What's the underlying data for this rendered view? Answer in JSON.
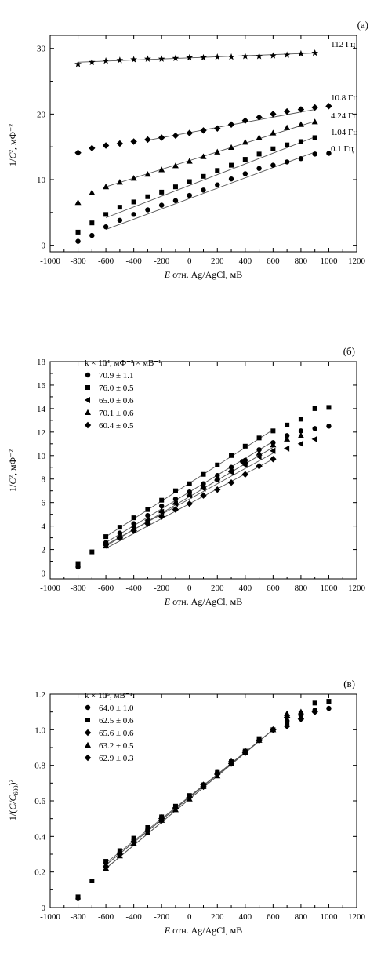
{
  "chart_data": [
    {
      "type": "scatter",
      "panel_label": "(а)",
      "xlabel_italic": "E",
      "xlabel_rest": " отн. Ag/AgCl, мВ",
      "ylabel_pre": "1/",
      "ylabel_italic": "C",
      "ylabel_post": "², мФ⁻²",
      "xlim": [
        -1000,
        1200
      ],
      "ylim": [
        -1,
        32
      ],
      "xticks": [
        -1000,
        -800,
        -600,
        -400,
        -200,
        0,
        200,
        400,
        600,
        800,
        1000,
        1200
      ],
      "yticks": [
        0,
        10,
        20,
        30
      ],
      "legend_title": "",
      "series": [
        {
          "name": "112 Гц",
          "marker": "star",
          "x": [
            -800,
            -700,
            -600,
            -500,
            -400,
            -300,
            -200,
            -100,
            0,
            100,
            200,
            300,
            400,
            500,
            600,
            700,
            800,
            900
          ],
          "y": [
            27.6,
            27.9,
            28.1,
            28.2,
            28.3,
            28.4,
            28.4,
            28.5,
            28.6,
            28.6,
            28.7,
            28.7,
            28.8,
            28.8,
            28.9,
            29.0,
            29.2,
            29.3
          ],
          "fit": [
            -800,
            27.9,
            900,
            29.3
          ]
        },
        {
          "name": "10.8 Гц",
          "marker": "diamond",
          "x": [
            -800,
            -700,
            -600,
            -500,
            -400,
            -300,
            -200,
            -100,
            0,
            100,
            200,
            300,
            400,
            500,
            600,
            700,
            800,
            900,
            1000
          ],
          "y": [
            14.1,
            14.8,
            15.2,
            15.5,
            15.8,
            16.1,
            16.4,
            16.7,
            17.1,
            17.5,
            17.8,
            18.4,
            19.0,
            19.5,
            20.0,
            20.4,
            20.7,
            21.0,
            21.2
          ],
          "fit": [
            -300,
            16.0,
            900,
            20.7
          ]
        },
        {
          "name": "4.24 Гц",
          "marker": "triangle",
          "x": [
            -800,
            -700,
            -600,
            -500,
            -400,
            -300,
            -200,
            -100,
            0,
            100,
            200,
            300,
            400,
            500,
            600,
            700,
            800,
            900
          ],
          "y": [
            6.5,
            8.0,
            8.9,
            9.6,
            10.2,
            10.8,
            11.5,
            12.1,
            12.8,
            13.5,
            14.2,
            14.9,
            15.7,
            16.4,
            17.1,
            17.9,
            18.4,
            18.8
          ],
          "fit": [
            -600,
            8.9,
            900,
            18.9
          ]
        },
        {
          "name": "1.04 Гц",
          "marker": "square",
          "x": [
            -800,
            -700,
            -600,
            -500,
            -400,
            -300,
            -200,
            -100,
            0,
            100,
            200,
            300,
            400,
            500,
            600,
            700,
            800,
            900
          ],
          "y": [
            2.0,
            3.4,
            4.7,
            5.8,
            6.6,
            7.4,
            8.1,
            8.9,
            9.7,
            10.5,
            11.4,
            12.2,
            13.1,
            13.9,
            14.7,
            15.3,
            15.8,
            16.4
          ],
          "fit": [
            -600,
            4.2,
            900,
            16.5
          ]
        },
        {
          "name": "0.1 Гц",
          "marker": "circle",
          "x": [
            -800,
            -700,
            -600,
            -500,
            -400,
            -300,
            -200,
            -100,
            0,
            100,
            200,
            300,
            400,
            500,
            600,
            700,
            800,
            900,
            1000
          ],
          "y": [
            0.6,
            1.5,
            2.8,
            3.8,
            4.7,
            5.4,
            6.1,
            6.8,
            7.6,
            8.4,
            9.2,
            10.1,
            10.9,
            11.7,
            12.2,
            12.7,
            13.2,
            13.9,
            14.0
          ],
          "fit": [
            -600,
            2.4,
            900,
            14.2
          ]
        }
      ]
    },
    {
      "type": "scatter",
      "panel_label": "(б)",
      "xlabel_italic": "E",
      "xlabel_rest": " отн. Ag/AgCl, мВ",
      "ylabel_pre": "1/",
      "ylabel_italic": "C",
      "ylabel_post": "², мФ⁻²",
      "xlim": [
        -1000,
        1200
      ],
      "ylim": [
        -0.5,
        18
      ],
      "xticks": [
        -1000,
        -800,
        -600,
        -400,
        -200,
        0,
        200,
        400,
        600,
        800,
        1000,
        1200
      ],
      "yticks": [
        0,
        2,
        4,
        6,
        8,
        10,
        12,
        14,
        16,
        18
      ],
      "legend_title": "k × 10⁴, мФ⁻² × мВ⁻¹",
      "series": [
        {
          "name": "70.9 ± 1.1",
          "marker": "circle",
          "x": [
            -800,
            -600,
            -500,
            -400,
            -300,
            -200,
            -100,
            0,
            100,
            200,
            300,
            380,
            400,
            500,
            600,
            700,
            800,
            900,
            1000
          ],
          "y": [
            0.5,
            2.6,
            3.4,
            4.2,
            4.9,
            5.7,
            6.3,
            6.9,
            7.6,
            8.3,
            9.0,
            9.5,
            9.6,
            10.5,
            11.1,
            11.7,
            12.1,
            12.3,
            12.5
          ],
          "fit": [
            -600,
            2.6,
            600,
            11.2
          ]
        },
        {
          "name": "76.0 ± 0.5",
          "marker": "square",
          "x": [
            -800,
            -700,
            -600,
            -500,
            -400,
            -300,
            -200,
            -100,
            0,
            100,
            200,
            300,
            400,
            500,
            600,
            700,
            800,
            900,
            1000
          ],
          "y": [
            0.8,
            1.8,
            3.1,
            3.9,
            4.7,
            5.4,
            6.2,
            7.0,
            7.6,
            8.4,
            9.2,
            10.0,
            10.8,
            11.5,
            12.1,
            12.6,
            13.1,
            14.0,
            14.1
          ],
          "fit": [
            -600,
            3.1,
            600,
            12.2
          ]
        },
        {
          "name": "65.0 ± 0.6",
          "marker": "triangle-left",
          "x": [
            -600,
            -500,
            -400,
            -300,
            -200,
            -100,
            0,
            100,
            200,
            300,
            400,
            500,
            600,
            700,
            800,
            900
          ],
          "y": [
            2.5,
            3.1,
            3.9,
            4.5,
            5.2,
            5.9,
            6.6,
            7.2,
            7.9,
            8.6,
            9.2,
            9.9,
            10.4,
            10.6,
            11.0,
            11.4
          ],
          "fit": [
            -600,
            2.4,
            600,
            10.2
          ]
        },
        {
          "name": "70.1 ± 0.6",
          "marker": "triangle",
          "x": [
            -600,
            -500,
            -400,
            -300,
            -200,
            -100,
            0,
            100,
            200,
            300,
            400,
            500,
            600,
            700,
            800
          ],
          "y": [
            2.3,
            3.1,
            3.8,
            4.5,
            5.3,
            6.0,
            6.7,
            7.4,
            8.1,
            8.8,
            9.5,
            10.2,
            10.9,
            11.4,
            11.7
          ],
          "fit": [
            -600,
            2.3,
            600,
            10.7
          ]
        },
        {
          "name": "60.4 ± 0.5",
          "marker": "diamond",
          "x": [
            -600,
            -500,
            -400,
            -300,
            -200,
            -100,
            0,
            100,
            200,
            300,
            400,
            500,
            600
          ],
          "y": [
            2.4,
            3.0,
            3.6,
            4.2,
            4.8,
            5.4,
            5.9,
            6.6,
            7.1,
            7.7,
            8.4,
            9.1,
            9.7
          ],
          "fit": [
            -600,
            2.1,
            600,
            9.7
          ]
        }
      ]
    },
    {
      "type": "scatter",
      "panel_label": "(в)",
      "xlabel_italic": "E",
      "xlabel_rest": " отн. Ag/AgCl, мВ",
      "ylabel_pre": "1/(",
      "ylabel_italic": "C/C",
      "ylabel_sub": "600",
      "ylabel_post": ")²",
      "xlim": [
        -1000,
        1200
      ],
      "ylim": [
        0,
        1.2
      ],
      "xticks": [
        -1000,
        -800,
        -600,
        -400,
        -200,
        0,
        200,
        400,
        600,
        800,
        1000,
        1200
      ],
      "yticks": [
        0,
        0.2,
        0.4,
        0.6,
        0.8,
        1.0,
        1.2
      ],
      "yticklabels": [
        "0",
        "0.2",
        "0.4",
        "0.6",
        "0.8",
        "1.0",
        "1.2"
      ],
      "legend_title": "k × 10⁵, мВ⁻¹:",
      "series": [
        {
          "name": "64.0 ± 1.0",
          "marker": "circle",
          "x": [
            -800,
            -600,
            -500,
            -400,
            -300,
            -200,
            -100,
            0,
            100,
            200,
            300,
            400,
            500,
            600,
            700,
            800,
            900,
            1000
          ],
          "y": [
            0.05,
            0.25,
            0.31,
            0.38,
            0.44,
            0.51,
            0.56,
            0.62,
            0.69,
            0.76,
            0.82,
            0.88,
            0.94,
            1.0,
            1.05,
            1.08,
            1.11,
            1.12
          ],
          "fit": [
            -600,
            0.24,
            600,
            1.0
          ]
        },
        {
          "name": "62.5 ± 0.6",
          "marker": "square",
          "x": [
            -800,
            -700,
            -600,
            -500,
            -400,
            -300,
            -200,
            -100,
            0,
            100,
            200,
            300,
            400,
            500,
            600,
            700,
            800,
            900,
            1000
          ],
          "y": [
            0.06,
            0.15,
            0.26,
            0.32,
            0.39,
            0.45,
            0.51,
            0.57,
            0.63,
            0.69,
            0.76,
            0.82,
            0.88,
            0.95,
            1.0,
            1.04,
            1.09,
            1.15,
            1.16
          ],
          "fit": [
            -600,
            0.25,
            600,
            1.0
          ]
        },
        {
          "name": "65.6 ± 0.6",
          "marker": "diamond",
          "x": [
            -600,
            -500,
            -400,
            -300,
            -200,
            -100,
            0,
            100,
            200,
            300,
            400,
            500,
            600,
            700,
            800,
            900
          ],
          "y": [
            0.23,
            0.3,
            0.37,
            0.43,
            0.5,
            0.56,
            0.62,
            0.69,
            0.75,
            0.82,
            0.88,
            0.94,
            1.0,
            1.02,
            1.06,
            1.1
          ],
          "fit": [
            -600,
            0.22,
            600,
            1.0
          ]
        },
        {
          "name": "63.2 ± 0.5",
          "marker": "triangle",
          "x": [
            -600,
            -500,
            -400,
            -300,
            -200,
            -100,
            0,
            100,
            200,
            300,
            400,
            500,
            600,
            700,
            800
          ],
          "y": [
            0.22,
            0.29,
            0.36,
            0.42,
            0.49,
            0.55,
            0.61,
            0.68,
            0.74,
            0.81,
            0.87,
            0.94,
            1.0,
            1.09,
            1.1
          ],
          "fit": [
            -600,
            0.22,
            600,
            1.0
          ]
        },
        {
          "name": "62.9 ± 0.3",
          "marker": "diamond",
          "x": [
            -600,
            -500,
            -400,
            -300,
            -200,
            -100,
            0,
            100,
            200,
            300,
            400,
            500,
            600,
            700
          ],
          "y": [
            0.23,
            0.3,
            0.37,
            0.43,
            0.49,
            0.56,
            0.62,
            0.68,
            0.75,
            0.81,
            0.87,
            0.94,
            1.0,
            1.07
          ],
          "fit": [
            -600,
            0.24,
            600,
            1.0
          ]
        }
      ]
    }
  ]
}
